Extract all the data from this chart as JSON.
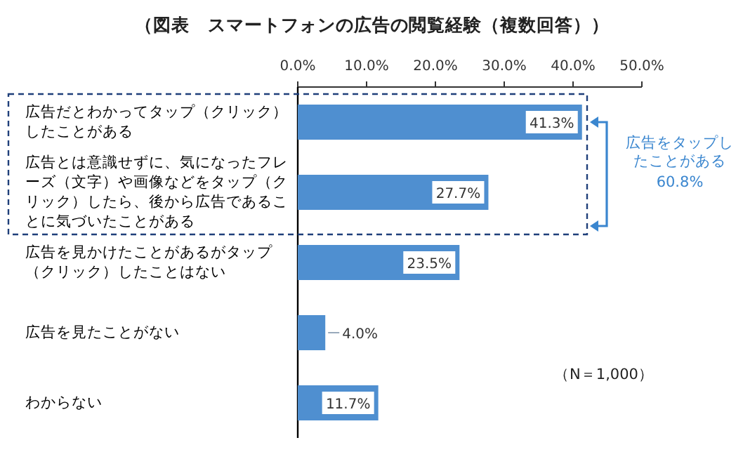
{
  "chart_data": {
    "type": "bar",
    "orientation": "horizontal",
    "title": "（図表　スマートフォンの広告の閲覧経験（複数回答））",
    "categories": [
      "広告だとわかってタップ（クリック）したことがある",
      "広告とは意識せずに、気になったフレーズ（文字）や画像などをタップ（クリック）したら、後から広告であることに気づいたことがある",
      "広告を見かけたことがあるがタップ（クリック）したことはない",
      "広告を見たことがない",
      "わからない"
    ],
    "values": [
      41.3,
      27.7,
      23.5,
      4.0,
      11.7
    ],
    "value_labels": [
      "41.3%",
      "27.7%",
      "23.5%",
      "4.0%",
      "11.7%"
    ],
    "color": "#4f8fd0",
    "xlim": [
      0,
      50
    ],
    "xticks": [
      {
        "value": 0,
        "label": "0.0%"
      },
      {
        "value": 10,
        "label": "10.0%"
      },
      {
        "value": 20,
        "label": "20.0%"
      },
      {
        "value": 30,
        "label": "30.0%"
      },
      {
        "value": 40,
        "label": "40.0%"
      },
      {
        "value": 50,
        "label": "50.0%"
      }
    ],
    "annotations": [
      "広告をタップしたことがある",
      "60.8%",
      "（N＝1,000）"
    ]
  }
}
